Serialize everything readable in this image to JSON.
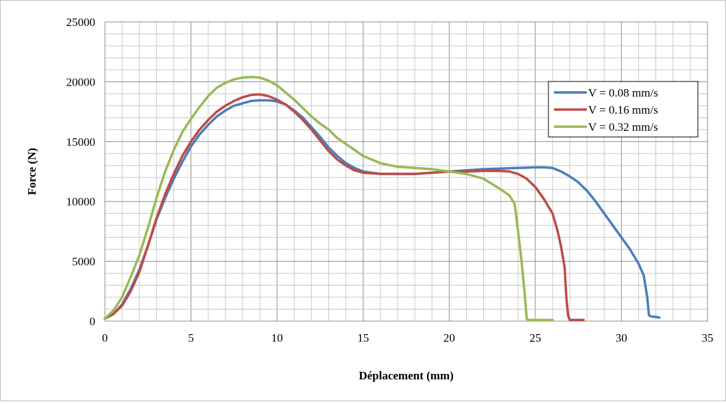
{
  "chart_data": {
    "type": "line",
    "title": "",
    "xlabel": "Déplacement (mm)",
    "ylabel": "Force (N)",
    "xlim": [
      0,
      35
    ],
    "ylim": [
      0,
      25000
    ],
    "x_ticks": [
      "0",
      "5",
      "10",
      "15",
      "20",
      "25",
      "30",
      "35"
    ],
    "y_ticks": [
      "0",
      "5000",
      "10000",
      "15000",
      "20000",
      "25000"
    ],
    "grid": true,
    "minor_grid": true,
    "legend_position": "top-right",
    "series": [
      {
        "name": "V = 0.08 mm/s",
        "color": "#4a7ebb",
        "x": [
          0,
          0.5,
          1,
          1.5,
          2,
          2.5,
          3,
          3.5,
          4,
          4.5,
          5,
          5.5,
          6,
          6.5,
          7,
          7.5,
          8,
          8.5,
          9,
          9.5,
          10,
          10.5,
          11,
          11.5,
          12,
          12.5,
          13,
          13.5,
          14,
          14.5,
          15,
          15.5,
          16,
          17,
          18,
          19,
          20,
          21,
          22,
          23,
          24,
          25,
          25.5,
          26,
          26.5,
          27,
          27.5,
          28,
          28.5,
          29,
          29.5,
          30,
          30.5,
          31,
          31.3,
          31.5,
          31.6,
          31.7,
          32,
          32.2
        ],
        "y": [
          200,
          600,
          1400,
          2700,
          4300,
          6300,
          8500,
          10300,
          11900,
          13300,
          14600,
          15600,
          16400,
          17100,
          17600,
          18000,
          18200,
          18400,
          18450,
          18450,
          18350,
          18100,
          17600,
          17000,
          16200,
          15400,
          14500,
          13800,
          13200,
          12800,
          12500,
          12400,
          12300,
          12300,
          12300,
          12400,
          12500,
          12600,
          12700,
          12750,
          12800,
          12850,
          12850,
          12800,
          12500,
          12100,
          11600,
          10900,
          10000,
          9000,
          8000,
          7000,
          6000,
          4800,
          3800,
          2000,
          500,
          400,
          350,
          300
        ]
      },
      {
        "name": "V = 0.16 mm/s",
        "color": "#be4b48",
        "x": [
          0,
          0.5,
          1,
          1.5,
          2,
          2.5,
          3,
          3.5,
          4,
          4.5,
          5,
          5.5,
          6,
          6.5,
          7,
          7.5,
          8,
          8.5,
          9,
          9.5,
          10,
          10.5,
          11,
          11.5,
          12,
          12.5,
          13,
          13.5,
          14,
          14.5,
          15,
          16,
          17,
          18,
          19,
          20,
          21,
          22,
          23,
          23.5,
          24,
          24.5,
          25,
          25.5,
          26,
          26.3,
          26.5,
          26.7,
          26.8,
          26.9,
          27,
          27.2,
          27.5,
          27.8
        ],
        "y": [
          200,
          600,
          1300,
          2500,
          4100,
          6300,
          8600,
          10600,
          12300,
          13800,
          15000,
          16000,
          16800,
          17500,
          18000,
          18400,
          18700,
          18900,
          18950,
          18800,
          18500,
          18100,
          17500,
          16800,
          16000,
          15100,
          14200,
          13500,
          13000,
          12600,
          12400,
          12300,
          12300,
          12300,
          12400,
          12500,
          12500,
          12550,
          12550,
          12500,
          12300,
          11900,
          11200,
          10200,
          9000,
          7500,
          6200,
          4500,
          2000,
          500,
          100,
          100,
          100,
          100
        ]
      },
      {
        "name": "V = 0.32 mm/s",
        "color": "#98b954",
        "x": [
          0,
          0.5,
          1,
          1.5,
          2,
          2.5,
          3,
          3.5,
          4,
          4.5,
          5,
          5.5,
          6,
          6.5,
          7,
          7.5,
          8,
          8.5,
          9,
          9.5,
          10,
          10.5,
          11,
          11.5,
          12,
          12.5,
          13,
          13.5,
          14,
          14.5,
          15,
          16,
          17,
          18,
          19,
          20,
          21,
          22,
          23,
          23.5,
          23.8,
          24,
          24.2,
          24.4,
          24.5,
          24.6,
          25,
          25.5,
          26
        ],
        "y": [
          200,
          900,
          2000,
          3700,
          5500,
          7800,
          10300,
          12500,
          14300,
          15800,
          16900,
          17900,
          18800,
          19500,
          19900,
          20200,
          20350,
          20400,
          20350,
          20100,
          19700,
          19100,
          18500,
          17800,
          17100,
          16500,
          16000,
          15300,
          14800,
          14300,
          13800,
          13200,
          12900,
          12800,
          12700,
          12500,
          12300,
          11900,
          11000,
          10500,
          9800,
          7500,
          5000,
          2000,
          200,
          100,
          100,
          100,
          100
        ]
      }
    ]
  }
}
